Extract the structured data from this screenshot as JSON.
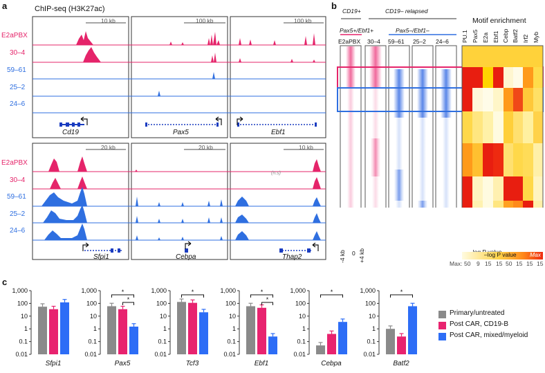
{
  "panel_a": {
    "letter": "a",
    "title": "ChIP-seq (H3K27ac)",
    "samples": [
      {
        "label": "E2aPBX",
        "color": "#e5246a"
      },
      {
        "label": "30–4",
        "color": "#e5246a"
      },
      {
        "label": "59–61",
        "color": "#2f6fe0"
      },
      {
        "label": "25–2",
        "color": "#2f6fe0"
      },
      {
        "label": "24–6",
        "color": "#2f6fe0"
      }
    ],
    "top_loci": [
      {
        "gene": "Cd19",
        "scale": "10 kb"
      },
      {
        "gene": "Pax5",
        "scale": "100 kb"
      },
      {
        "gene": "Ebf1",
        "scale": "100 kb"
      }
    ],
    "bottom_loci": [
      {
        "gene": "Sfpi1",
        "scale": "20 kb"
      },
      {
        "gene": "Cebpa",
        "scale": "20 kb"
      },
      {
        "gene": "Thap2",
        "scale": "10 kb"
      }
    ]
  },
  "panel_b": {
    "letter": "b",
    "group_cd19pos": "CD19+",
    "group_cd19neg": "CD19– relapsed",
    "sub_pos": "Pax5+/Ebf1+",
    "sub_neg": "Pax5–/Ebf1–",
    "columns": [
      "E2aPBX",
      "30–4",
      "59–61",
      "25–2",
      "24–6"
    ],
    "axis_ticks": [
      "-4 kb",
      "0",
      "+4 kb"
    ],
    "motif_title": "Motif enrichment",
    "motifs": [
      "PU.1",
      "Pax5",
      "E2a",
      "Ebf1",
      "Cebp",
      "Batf2",
      "Irf2",
      "Myb"
    ],
    "legend_label": "–log P value",
    "legend_max": "Max",
    "max_label": "Max:",
    "max_values": [
      "50",
      "9",
      "15",
      "15",
      "50",
      "15",
      "15",
      "15"
    ]
  },
  "panel_c": {
    "letter": "c",
    "chart_data": {
      "type": "bar",
      "scale": "log",
      "ylim": [
        0.01,
        1000
      ],
      "yticks": [
        "1,000",
        "100",
        "10",
        "1",
        "0.1",
        "0.01"
      ],
      "series": [
        {
          "name": "Primary/untreated",
          "color": "#8a8a8a"
        },
        {
          "name": "Post CAR, CD19-B",
          "color": "#e8236f"
        },
        {
          "name": "Post CAR, mixed/myeloid",
          "color": "#2d6df6"
        }
      ],
      "genes": [
        {
          "name": "Sfpi1",
          "values": [
            55,
            35,
            120
          ],
          "significance": []
        },
        {
          "name": "Pax5",
          "values": [
            60,
            35,
            1.5
          ],
          "significance": [
            "*",
            "*"
          ]
        },
        {
          "name": "Tcf3",
          "values": [
            130,
            110,
            20
          ],
          "significance": [
            "*"
          ]
        },
        {
          "name": "Ebf1",
          "values": [
            60,
            45,
            0.25
          ],
          "significance": [
            "*",
            "*"
          ]
        },
        {
          "name": "Cebpa",
          "values": [
            0.05,
            0.4,
            3.5
          ],
          "significance": [
            "*"
          ]
        },
        {
          "name": "Batf2",
          "values": [
            1,
            0.25,
            60
          ],
          "significance": [
            "*"
          ]
        }
      ]
    }
  }
}
